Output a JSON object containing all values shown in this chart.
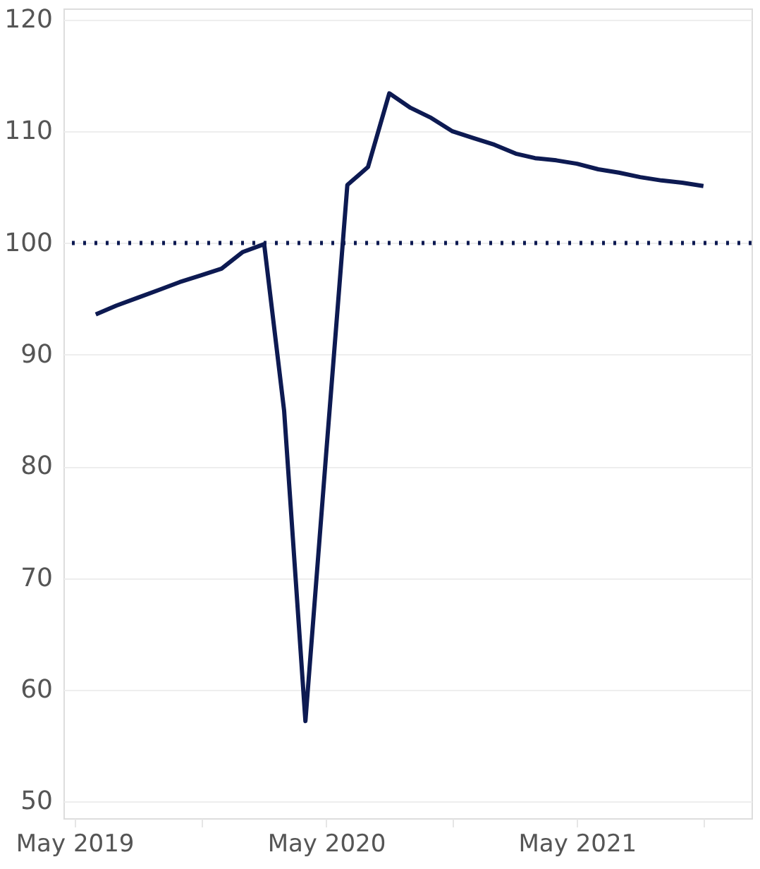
{
  "chart_data": {
    "type": "line",
    "x": [
      "2019-06",
      "2019-07",
      "2019-08",
      "2019-09",
      "2019-10",
      "2019-11",
      "2019-12",
      "2020-01",
      "2020-02",
      "2020-03",
      "2020-04",
      "2020-05",
      "2020-06",
      "2020-07",
      "2020-08",
      "2020-09",
      "2020-10",
      "2020-11",
      "2020-12",
      "2021-01",
      "2021-02",
      "2021-03",
      "2021-04",
      "2021-05",
      "2021-06",
      "2021-07",
      "2021-08",
      "2021-09",
      "2021-10",
      "2021-11"
    ],
    "series": [
      {
        "color": "#0d1a52",
        "values": [
          93.6,
          94.4,
          95.1,
          95.8,
          96.5,
          97.1,
          97.7,
          99.2,
          99.9,
          85,
          57.2,
          81,
          105.2,
          106.8,
          113.4,
          112.1,
          111.2,
          110.0,
          109.4,
          108.8,
          108.0,
          107.6,
          107.4,
          107.1,
          106.6,
          106.3,
          105.9,
          105.6,
          105.4,
          105.1
        ]
      }
    ],
    "xlim": [
      "2019-04-15",
      "2022-01-10"
    ],
    "xticks": [
      {
        "value": "2019-05",
        "label": "May 2019"
      },
      {
        "value": "2019-11",
        "label": null
      },
      {
        "value": "2020-05",
        "label": "May 2020"
      },
      {
        "value": "2020-11",
        "label": null
      },
      {
        "value": "2021-05",
        "label": "May 2021"
      },
      {
        "value": "2021-11",
        "label": null
      }
    ],
    "ylim": [
      48.5,
      121
    ],
    "yticks": [
      50,
      60,
      70,
      80,
      90,
      100,
      110,
      120
    ],
    "grid": "y",
    "marker": "none",
    "line_style": "solid",
    "ref_lines": [
      {
        "axis": "y",
        "value": 100,
        "label": null,
        "color": "#0d1a52",
        "line_style": "dotted"
      }
    ]
  }
}
